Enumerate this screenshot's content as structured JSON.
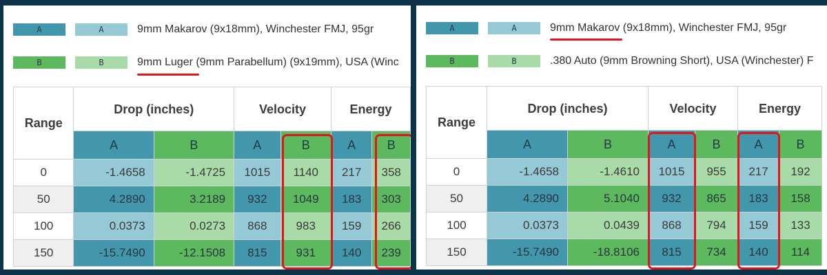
{
  "panels": [
    {
      "legend": [
        {
          "letter": "A",
          "label": "9mm Makarov (9x18mm), Winchester FMJ, 95gr"
        },
        {
          "letter": "B",
          "label_underlined": "9mm Luger",
          "label_rest": " (9mm Parabellum) (9x19mm), USA (Winc"
        }
      ],
      "headers": {
        "range": "Range",
        "drop": "Drop (inches)",
        "velocity": "Velocity",
        "energy": "Energy",
        "a": "A",
        "b": "B"
      },
      "rows": [
        {
          "range": "0",
          "drop_a": "-1.4658",
          "drop_b": "-1.4725",
          "vel_a": "1015",
          "vel_b": "1140",
          "en_a": "217",
          "en_b": "358"
        },
        {
          "range": "50",
          "drop_a": "4.2890",
          "drop_b": "3.2189",
          "vel_a": "932",
          "vel_b": "1049",
          "en_a": "183",
          "en_b": "303"
        },
        {
          "range": "100",
          "drop_a": "0.0373",
          "drop_b": "0.0273",
          "vel_a": "868",
          "vel_b": "983",
          "en_a": "159",
          "en_b": "266"
        },
        {
          "range": "150",
          "drop_a": "-15.7490",
          "drop_b": "-12.1508",
          "vel_a": "815",
          "vel_b": "931",
          "en_a": "140",
          "en_b": "239"
        }
      ]
    },
    {
      "legend": [
        {
          "letter": "A",
          "label_underlined": "9mm Makarov",
          "label_rest": " (9x18mm), Winchester FMJ, 95gr"
        },
        {
          "letter": "B",
          "label": ".380 Auto (9mm Browning Short), USA (Winchester) F"
        }
      ],
      "headers": {
        "range": "Range",
        "drop": "Drop (inches)",
        "velocity": "Velocity",
        "energy": "Energy",
        "a": "A",
        "b": "B"
      },
      "rows": [
        {
          "range": "0",
          "drop_a": "-1.4658",
          "drop_b": "-1.4610",
          "vel_a": "1015",
          "vel_b": "955",
          "en_a": "217",
          "en_b": "192"
        },
        {
          "range": "50",
          "drop_a": "4.2890",
          "drop_b": "5.1040",
          "vel_a": "932",
          "vel_b": "865",
          "en_a": "183",
          "en_b": "158"
        },
        {
          "range": "100",
          "drop_a": "0.0373",
          "drop_b": "0.0439",
          "vel_a": "868",
          "vel_b": "794",
          "en_a": "159",
          "en_b": "133"
        },
        {
          "range": "150",
          "drop_a": "-15.7490",
          "drop_b": "-18.8106",
          "vel_a": "815",
          "vel_b": "734",
          "en_a": "140",
          "en_b": "114"
        }
      ]
    }
  ],
  "colors": {
    "background": "#0d3349",
    "series_a": "#4397ad",
    "series_a_light": "#96c9d6",
    "series_b": "#5db95d",
    "series_b_light": "#a9dba9",
    "highlight": "#e0161c"
  }
}
